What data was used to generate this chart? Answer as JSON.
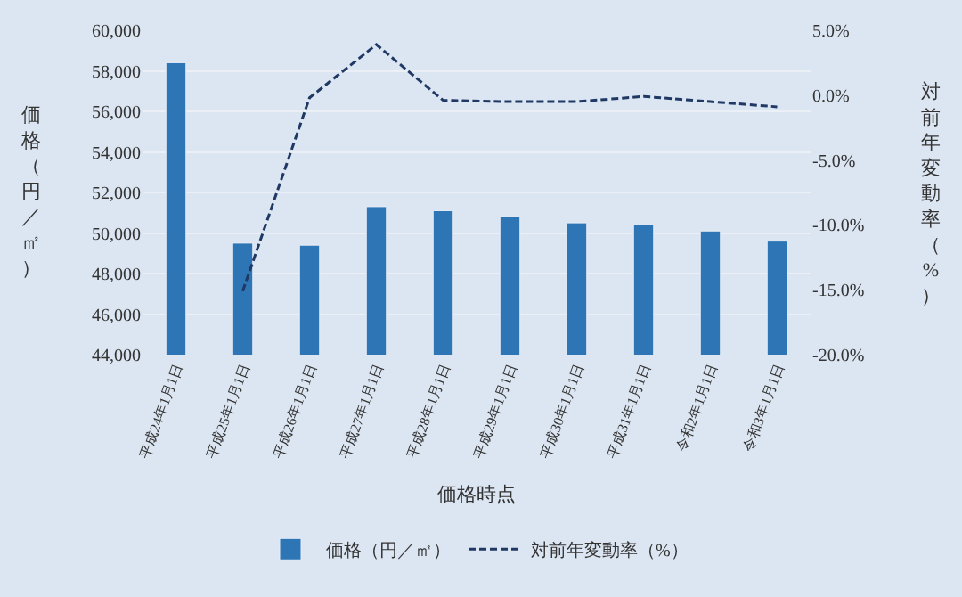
{
  "chart_data": {
    "type": "bar",
    "categories": [
      "平成24年1月1日",
      "平成25年1月1日",
      "平成26年1月1日",
      "平成27年1月1日",
      "平成28年1月1日",
      "平成29年1月1日",
      "平成30年1月1日",
      "平成31年1月1日",
      "令和2年1月1日",
      "令和3年1月1日"
    ],
    "series": [
      {
        "name": "価格（円／㎡）",
        "color": "#2e75b6",
        "values": [
          58400,
          49500,
          49400,
          51300,
          51100,
          50800,
          50500,
          50400,
          50100,
          49600
        ]
      },
      {
        "name": "対前年変動率（%）",
        "type": "line",
        "axis": "y2",
        "color": "#203864",
        "line_style": "dashed",
        "values": [
          null,
          -15.1,
          -0.2,
          3.9,
          -0.4,
          -0.5,
          -0.5,
          -0.1,
          -0.5,
          -0.9
        ]
      }
    ],
    "xlabel": "価格時点",
    "ylabel": "価格（円／㎡）",
    "y2label": "対前年変動率（%）",
    "ylim": [
      44000,
      60000
    ],
    "yticks": [
      {
        "value": 44000,
        "label": "44,000"
      },
      {
        "value": 46000,
        "label": "46,000"
      },
      {
        "value": 48000,
        "label": "48,000"
      },
      {
        "value": 50000,
        "label": "50,000"
      },
      {
        "value": 52000,
        "label": "52,000"
      },
      {
        "value": 54000,
        "label": "54,000"
      },
      {
        "value": 56000,
        "label": "56,000"
      },
      {
        "value": 58000,
        "label": "58,000"
      },
      {
        "value": 60000,
        "label": "60,000"
      }
    ],
    "y2lim": [
      -20,
      5
    ],
    "y2ticks": [
      {
        "value": -20,
        "label": "-20.0%"
      },
      {
        "value": -15,
        "label": "-15.0%"
      },
      {
        "value": -10,
        "label": "-10.0%"
      },
      {
        "value": -5,
        "label": "-5.0%"
      },
      {
        "value": 0,
        "label": "0.0%"
      },
      {
        "value": 5,
        "label": "5.0%"
      }
    ],
    "grid": "y",
    "legend": "bottom",
    "marker": "none"
  }
}
